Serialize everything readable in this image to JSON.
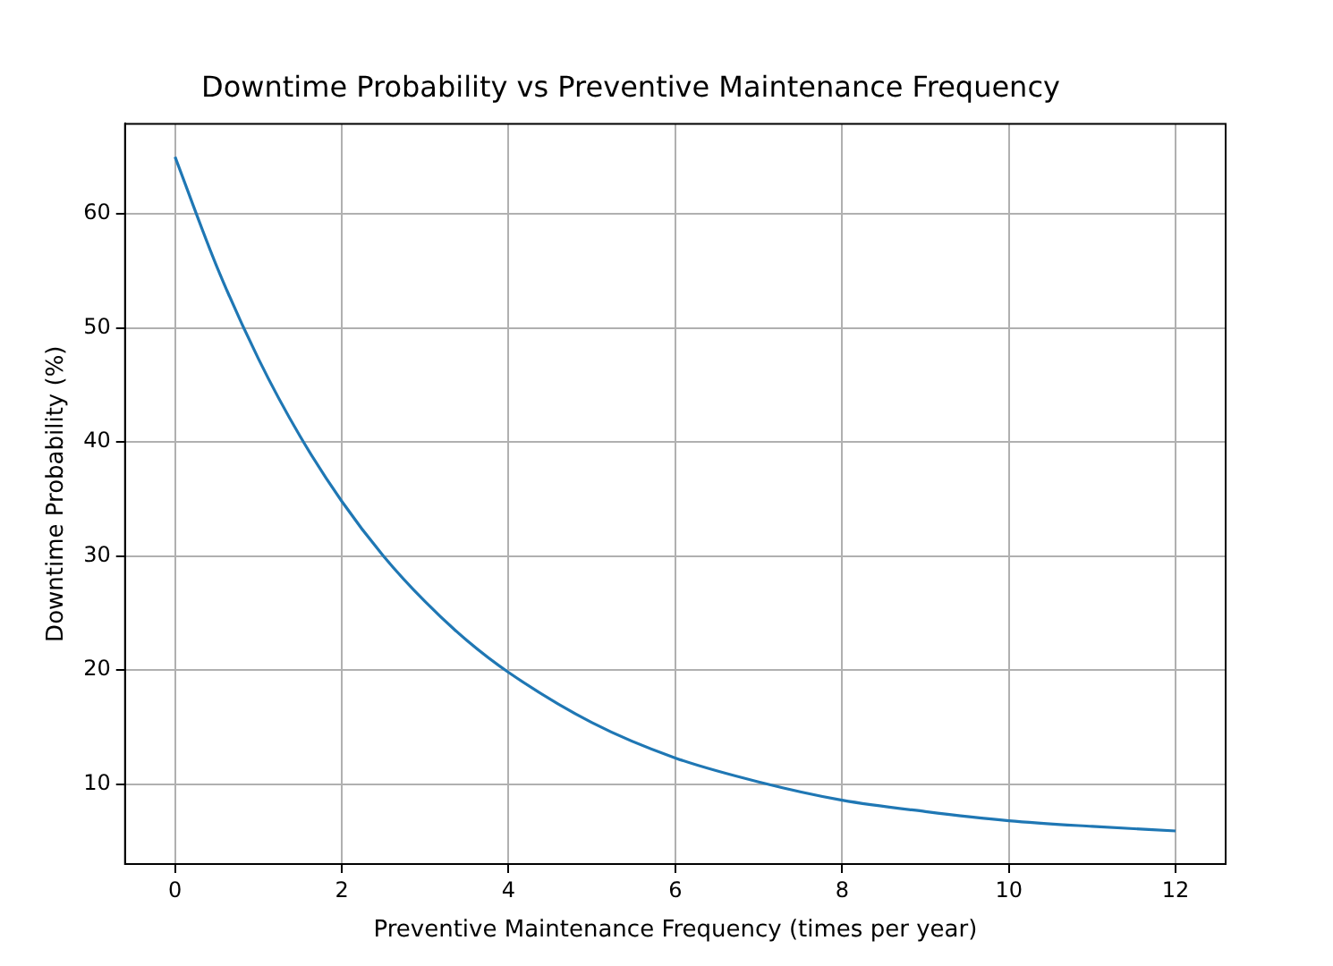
{
  "chart_data": {
    "type": "line",
    "title": "Downtime Probability vs Preventive Maintenance Frequency",
    "xlabel": "Preventive Maintenance Frequency (times per year)",
    "ylabel": "Downtime Probability (%)",
    "x": [
      0,
      0.5,
      1,
      1.5,
      2,
      2.5,
      3,
      3.5,
      4,
      5,
      6,
      7,
      8,
      9,
      10,
      11,
      12
    ],
    "series": [
      {
        "color": "#1f77b4",
        "values": [
          65,
          55.4,
          47.3,
          40.5,
          34.8,
          30.0,
          26.0,
          22.6,
          19.8,
          15.4,
          12.3,
          10.2,
          8.6,
          7.6,
          6.8,
          6.3,
          5.9
        ]
      }
    ],
    "xlim": [
      -0.6,
      12.6
    ],
    "ylim": [
      3.0,
      67.9
    ],
    "xticks": [
      0,
      2,
      4,
      6,
      8,
      10,
      12
    ],
    "yticks": [
      10,
      20,
      30,
      40,
      50,
      60
    ],
    "grid": true,
    "legend": false,
    "marker": "none",
    "line_style": "solid"
  }
}
